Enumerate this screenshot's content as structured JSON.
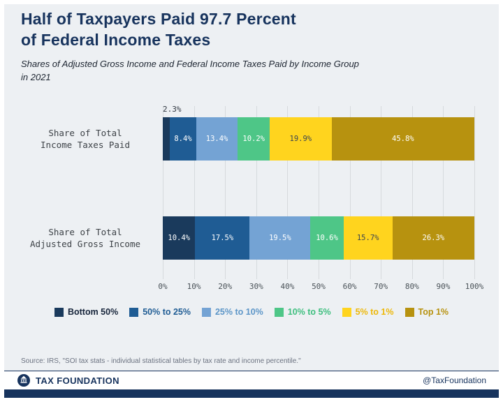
{
  "header": {
    "title_line1": "Half of Taxpayers Paid 97.7 Percent",
    "title_line2": "of Federal Income Taxes",
    "subtitle_line1": "Shares of Adjusted Gross Income and Federal Income Taxes Paid by Income Group",
    "subtitle_line2": "in 2021"
  },
  "chart_data": {
    "type": "bar",
    "orientation": "horizontal",
    "stacked": true,
    "grid": true,
    "legend_position": "bottom",
    "xlim": [
      0,
      100
    ],
    "x_ticks": [
      "0%",
      "10%",
      "20%",
      "30%",
      "40%",
      "50%",
      "60%",
      "70%",
      "80%",
      "90%",
      "100%"
    ],
    "categories": [
      "Share of Total Income Taxes Paid",
      "Share of Total Adjusted Gross Income"
    ],
    "row_labels": [
      [
        "Share of Total",
        "Income Taxes Paid"
      ],
      [
        "Share of Total",
        "Adjusted Gross Income"
      ]
    ],
    "series": [
      {
        "name": "Bottom 50%",
        "values": [
          2.3,
          10.4
        ],
        "color": "#1a3a5c",
        "legend_text_color": "#16243a",
        "value_text_color": "#ffffff"
      },
      {
        "name": "50% to 25%",
        "values": [
          8.4,
          17.5
        ],
        "color": "#1f5c94",
        "legend_text_color": "#1f5c94",
        "value_text_color": "#ffffff"
      },
      {
        "name": "25% to 10%",
        "values": [
          13.4,
          19.5
        ],
        "color": "#74a3d4",
        "legend_text_color": "#5d96c8",
        "value_text_color": "#ffffff"
      },
      {
        "name": "10% to 5%",
        "values": [
          10.2,
          10.6
        ],
        "color": "#4ec687",
        "legend_text_color": "#3fbf7f",
        "value_text_color": "#ffffff"
      },
      {
        "name": "5% to 1%",
        "values": [
          19.9,
          15.7
        ],
        "color": "#ffd41e",
        "legend_text_color": "#edb80b",
        "value_text_color": "#3a4450"
      },
      {
        "name": "Top 1%",
        "values": [
          45.8,
          26.3
        ],
        "color": "#b7920f",
        "legend_text_color": "#b7920f",
        "value_text_color": "#ffffff"
      }
    ]
  },
  "source": "Source: IRS, \"SOI tax stats - individual statistical tables by tax rate and income percentile.\"",
  "footer": {
    "brand": "TAX FOUNDATION",
    "handle": "@TaxFoundation"
  },
  "colors": {
    "accent_navy": "#17335d",
    "background": "#edf0f3"
  }
}
